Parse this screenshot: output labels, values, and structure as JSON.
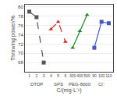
{
  "chart_data": {
    "type": "line",
    "xlabel": "C/(mg·L⁻¹)",
    "ylabel": "Throwing power/%",
    "categories": [
      "1",
      "2",
      "3",
      "4",
      "5",
      "6",
      "300",
      "400",
      "500",
      "90",
      "100",
      "110"
    ],
    "series": [
      {
        "name": "DTDP",
        "color": "#555555",
        "marker": "square",
        "line_style": "dashed",
        "values": [
          79.0,
          77.8,
          68.0,
          null,
          null,
          null,
          null,
          null,
          null,
          null,
          null,
          null
        ]
      },
      {
        "name": "SPS",
        "color": "#dd2222",
        "marker": "triangle",
        "line_style": "dashed",
        "values": [
          null,
          null,
          null,
          75.2,
          76.8,
          72.5,
          null,
          null,
          null,
          null,
          null,
          null
        ]
      },
      {
        "name": "PEG-8000",
        "color": "#228822",
        "marker": "triangle",
        "line_style": "solid",
        "values": [
          null,
          null,
          null,
          null,
          null,
          null,
          71.2,
          74.8,
          78.3,
          null,
          null,
          null
        ]
      },
      {
        "name": "Cl⁻",
        "color": "#4455cc",
        "marker": "square",
        "line_style": "solid",
        "values": [
          null,
          null,
          null,
          null,
          null,
          null,
          null,
          null,
          null,
          71.2,
          76.8,
          76.5
        ]
      }
    ],
    "ylim": [
      66,
      80.5
    ],
    "yticks": [
      68,
      70,
      72,
      74,
      76,
      78,
      80
    ]
  }
}
